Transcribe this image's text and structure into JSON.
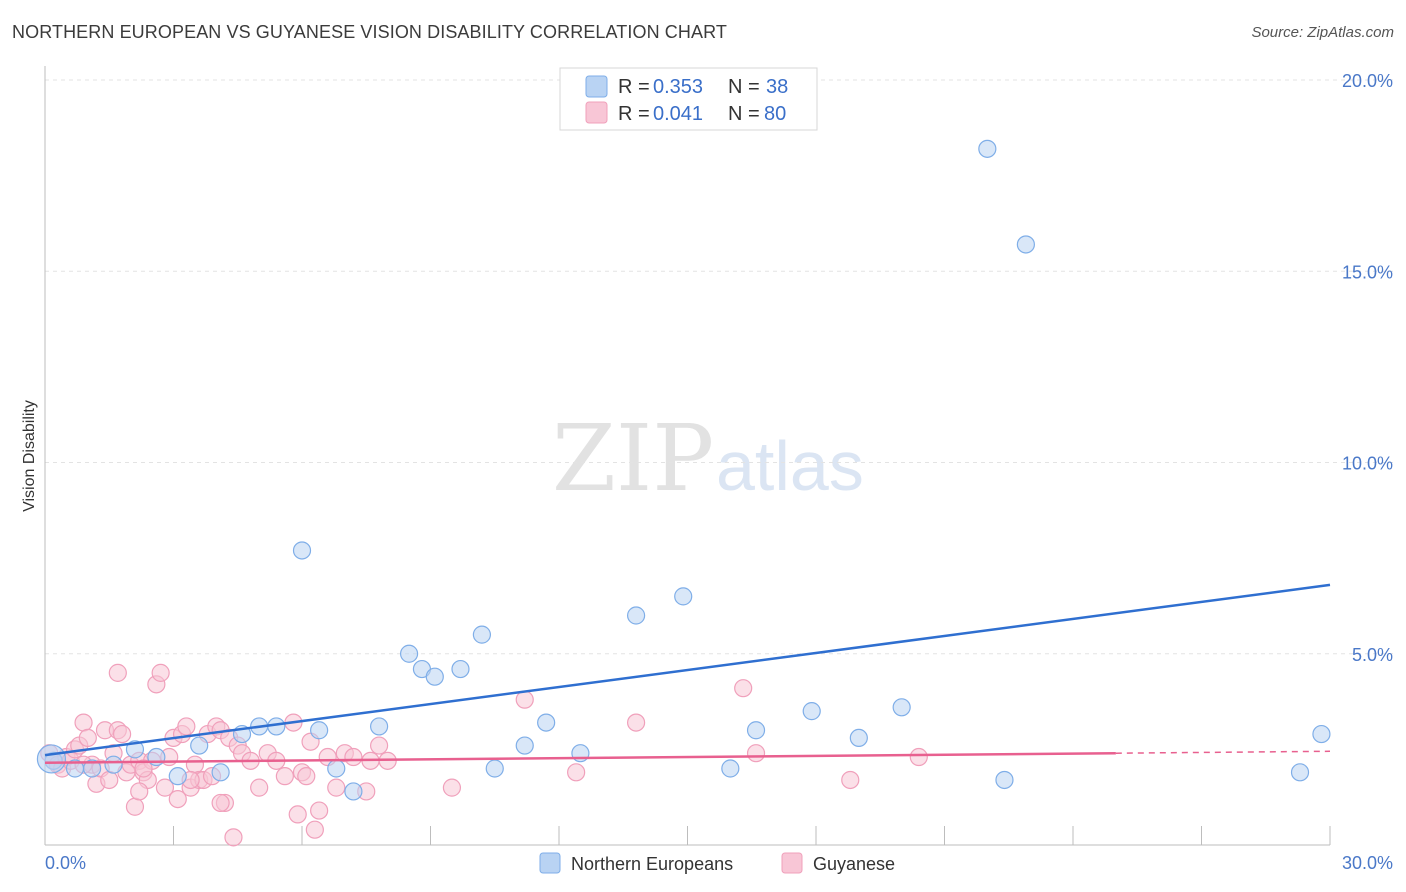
{
  "title": "NORTHERN EUROPEAN VS GUYANESE VISION DISABILITY CORRELATION CHART",
  "source": "Source: ZipAtlas.com",
  "watermark": {
    "part1": "ZIP",
    "part2": "atlas"
  },
  "chart_data": {
    "type": "scatter",
    "ylabel": "Vision Disability",
    "xlim": [
      0,
      30
    ],
    "ylim": [
      0,
      20.5
    ],
    "x_tick_labels": [
      {
        "value": 0,
        "label": "0.0%"
      },
      {
        "value": 30,
        "label": "30.0%"
      }
    ],
    "y_tick_labels": [
      {
        "value": 5,
        "label": "5.0%"
      },
      {
        "value": 10,
        "label": "10.0%"
      },
      {
        "value": 15,
        "label": "15.0%"
      },
      {
        "value": 20,
        "label": "20.0%"
      }
    ],
    "grid": true,
    "legend": {
      "placement": "top-center",
      "rows": [
        {
          "r_label": "R = ",
          "r_value": "0.353",
          "n_label": "N = ",
          "n_value": "38"
        },
        {
          "r_label": "R = ",
          "r_value": "0.041",
          "n_label": "N = ",
          "n_value": "80"
        }
      ]
    },
    "series": [
      {
        "name": "Northern Europeans",
        "color": "#7faee8",
        "fill": "#b9d3f3",
        "line_color": "#2f6fd0",
        "trend": {
          "x0": 0,
          "y0": 2.35,
          "x1": 30,
          "y1": 6.8
        },
        "points": [
          [
            0.2,
            2.2
          ],
          [
            0.7,
            2.0
          ],
          [
            1.1,
            2.0
          ],
          [
            1.6,
            2.1
          ],
          [
            2.1,
            2.5
          ],
          [
            2.6,
            2.3
          ],
          [
            3.1,
            1.8
          ],
          [
            3.6,
            2.6
          ],
          [
            4.1,
            1.9
          ],
          [
            4.6,
            2.9
          ],
          [
            5.0,
            3.1
          ],
          [
            5.4,
            3.1
          ],
          [
            6.0,
            7.7
          ],
          [
            6.4,
            3.0
          ],
          [
            6.8,
            2.0
          ],
          [
            7.2,
            1.4
          ],
          [
            7.8,
            3.1
          ],
          [
            8.5,
            5.0
          ],
          [
            8.8,
            4.6
          ],
          [
            9.1,
            4.4
          ],
          [
            9.7,
            4.6
          ],
          [
            10.2,
            5.5
          ],
          [
            10.5,
            2.0
          ],
          [
            11.2,
            2.6
          ],
          [
            11.7,
            3.2
          ],
          [
            12.5,
            2.4
          ],
          [
            13.8,
            6.0
          ],
          [
            14.9,
            6.5
          ],
          [
            16.0,
            2.0
          ],
          [
            16.6,
            3.0
          ],
          [
            17.9,
            3.5
          ],
          [
            19.0,
            2.8
          ],
          [
            20.0,
            3.6
          ],
          [
            22.0,
            18.2
          ],
          [
            22.4,
            1.7
          ],
          [
            22.9,
            15.7
          ],
          [
            29.3,
            1.9
          ],
          [
            29.8,
            2.9
          ]
        ]
      },
      {
        "name": "Guyanese",
        "color": "#f0a0bb",
        "fill": "#f8c6d6",
        "line_color": "#e8608f",
        "trend": {
          "x0": 0,
          "y0": 2.15,
          "x1": 25,
          "y1": 2.4
        },
        "trend_dashed": {
          "x0": 25,
          "y0": 2.4,
          "x1": 30,
          "y1": 2.45
        },
        "points": [
          [
            0.1,
            2.4
          ],
          [
            0.2,
            2.2
          ],
          [
            0.3,
            2.1
          ],
          [
            0.4,
            2.0
          ],
          [
            0.5,
            2.3
          ],
          [
            0.6,
            2.2
          ],
          [
            0.7,
            2.5
          ],
          [
            0.8,
            2.6
          ],
          [
            0.9,
            3.2
          ],
          [
            1.0,
            2.8
          ],
          [
            1.1,
            2.1
          ],
          [
            1.2,
            1.6
          ],
          [
            1.3,
            2.0
          ],
          [
            1.4,
            3.0
          ],
          [
            1.5,
            1.7
          ],
          [
            1.6,
            2.4
          ],
          [
            1.7,
            3.0
          ],
          [
            1.8,
            2.9
          ],
          [
            1.9,
            1.9
          ],
          [
            2.0,
            2.1
          ],
          [
            2.1,
            1.0
          ],
          [
            2.2,
            2.2
          ],
          [
            2.3,
            1.9
          ],
          [
            2.4,
            1.7
          ],
          [
            2.5,
            2.2
          ],
          [
            2.6,
            4.2
          ],
          [
            2.7,
            4.5
          ],
          [
            2.8,
            1.5
          ],
          [
            2.9,
            2.3
          ],
          [
            3.0,
            2.8
          ],
          [
            3.1,
            1.2
          ],
          [
            3.2,
            2.9
          ],
          [
            3.3,
            3.1
          ],
          [
            3.4,
            1.5
          ],
          [
            3.5,
            2.1
          ],
          [
            3.6,
            1.7
          ],
          [
            3.7,
            1.7
          ],
          [
            3.8,
            2.9
          ],
          [
            3.9,
            1.8
          ],
          [
            4.0,
            3.1
          ],
          [
            4.1,
            3.0
          ],
          [
            4.2,
            1.1
          ],
          [
            4.3,
            2.8
          ],
          [
            4.4,
            0.2
          ],
          [
            4.5,
            2.6
          ],
          [
            4.6,
            2.4
          ],
          [
            4.8,
            2.2
          ],
          [
            5.0,
            1.5
          ],
          [
            5.2,
            2.4
          ],
          [
            5.4,
            2.2
          ],
          [
            5.6,
            1.8
          ],
          [
            5.8,
            3.2
          ],
          [
            6.0,
            1.9
          ],
          [
            6.2,
            2.7
          ],
          [
            6.4,
            0.9
          ],
          [
            6.6,
            2.3
          ],
          [
            6.8,
            1.5
          ],
          [
            7.0,
            2.4
          ],
          [
            7.2,
            2.3
          ],
          [
            7.5,
            1.4
          ],
          [
            7.8,
            2.6
          ],
          [
            8.0,
            2.2
          ],
          [
            9.5,
            1.5
          ],
          [
            11.2,
            3.8
          ],
          [
            12.4,
            1.9
          ],
          [
            13.8,
            3.2
          ],
          [
            16.3,
            4.1
          ],
          [
            16.6,
            2.4
          ],
          [
            18.8,
            1.7
          ],
          [
            20.4,
            2.3
          ],
          [
            1.7,
            4.5
          ],
          [
            2.2,
            1.4
          ],
          [
            3.4,
            1.7
          ],
          [
            4.1,
            1.1
          ],
          [
            5.9,
            0.8
          ],
          [
            6.1,
            1.8
          ],
          [
            6.3,
            0.4
          ],
          [
            7.6,
            2.2
          ],
          [
            2.3,
            2.0
          ],
          [
            0.9,
            2.1
          ]
        ]
      }
    ]
  }
}
